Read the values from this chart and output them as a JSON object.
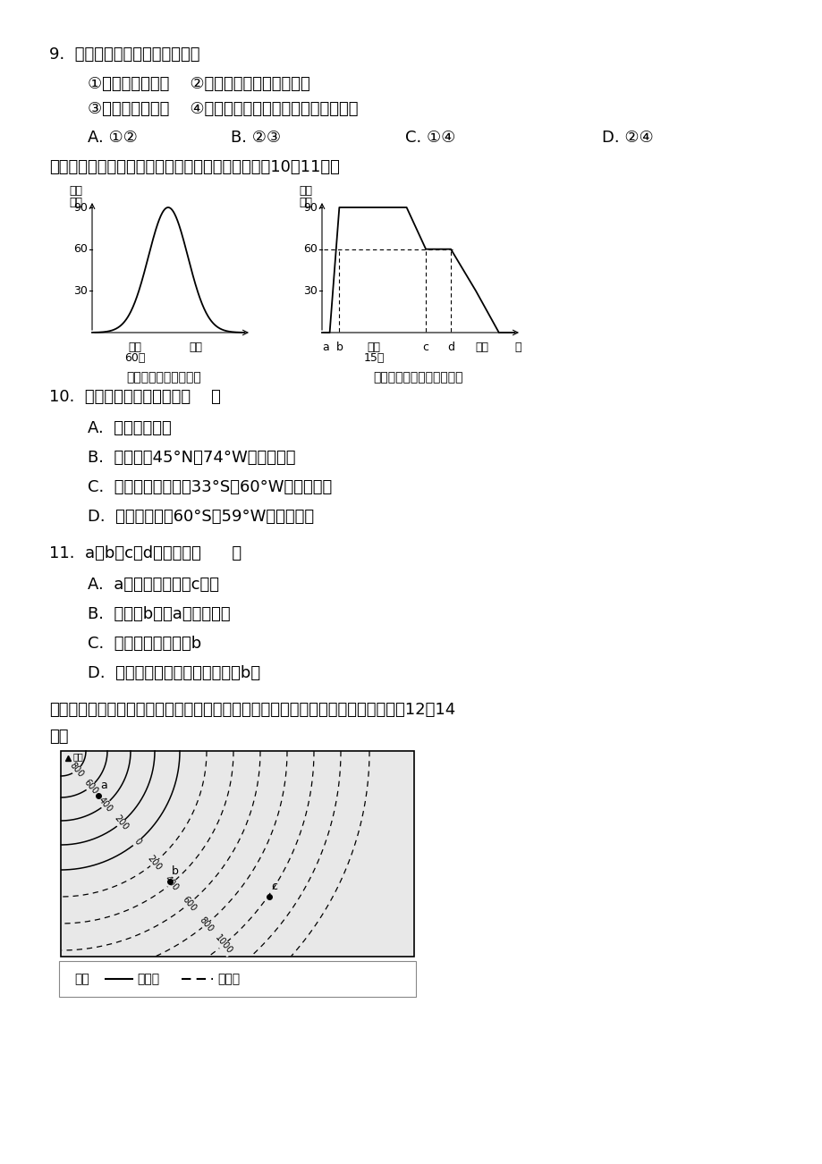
{
  "bg_color": "#ffffff",
  "q9_text": "9.  有关岩石圈的叙述，正确的是",
  "q9_opt1": "    ①包括地壳和地幔    ②主要是由各种岩石组成的",
  "q9_opt2": "    ③位于软流层以上    ④厚度不一，大陆部分薄，大洋部分厚",
  "q9_A": "    A. ①②",
  "q9_B": "    B. ②③",
  "q9_C": "    C. ①④",
  "q9_D": "    D. ②④",
  "intro_text": "读下列太阳高度随经度和纬度变化示意图，回答下列10～11题。",
  "left_chart_title": "太阳高度随经度的变化",
  "right_chart_title": "正午太阳高度随纬度的变化",
  "q10_text": "10.  此时可能出现的现象是（    ）",
  "q10_A": "    A.  北京旭日东升",
  "q10_B": "    B.  多伦多（45°N，74°W）夕阳西下",
  "q10_C": "    C.  布宜诺斯艾利斯（33°S，60°W）艳阳高照",
  "q10_D": "    D.  南极长城站（60°S、59°W）夜幕深沉",
  "q11_text": "11.  a、b、c、d四点比较（      ）",
  "q11_A": "    A.  a点自转线速度比c点小",
  "q11_B": "    B.  这一天b点比a点晚见日出",
  "q11_C": "    C.  四点白昼最长的是b",
  "q11_D": "    D.  一年中昼夜长短相差最小的是b点",
  "q12_intro1": "下图为北半球沿海某区域等值线图（图中数据表示海拔高度，单位为米）。完成下面12～14",
  "q12_intro2": "题。",
  "legend_label": "图例",
  "legend_solid": "等高线",
  "legend_dash": "等深线"
}
